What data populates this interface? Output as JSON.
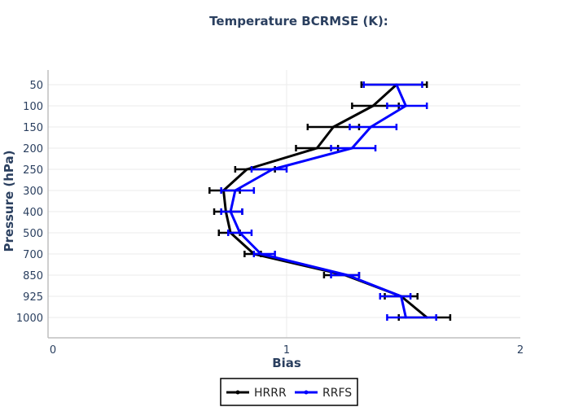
{
  "chart_data": {
    "type": "line",
    "title": "Temperature BCRMSE (K):",
    "xlabel": "Bias",
    "ylabel": "Pressure (hPa)",
    "xlim": [
      0,
      2
    ],
    "x_ticks": [
      "0",
      "1",
      "2"
    ],
    "categories": [
      "50",
      "100",
      "150",
      "200",
      "250",
      "300",
      "400",
      "500",
      "700",
      "850",
      "925",
      "1000"
    ],
    "grid": true,
    "legend_position": "bottom-center",
    "series": [
      {
        "name": "HRRR",
        "color": "#000000",
        "values": [
          1.47,
          1.37,
          1.2,
          1.13,
          0.83,
          0.73,
          0.74,
          0.76,
          0.86,
          1.25,
          1.49,
          1.6
        ],
        "err_low": [
          1.32,
          1.28,
          1.09,
          1.04,
          0.78,
          0.67,
          0.69,
          0.71,
          0.82,
          1.16,
          1.42,
          1.48
        ],
        "err_high": [
          1.6,
          1.48,
          1.31,
          1.22,
          0.95,
          0.8,
          0.81,
          0.8,
          0.89,
          1.31,
          1.56,
          1.7
        ]
      },
      {
        "name": "RRFS",
        "color": "#0000ff",
        "values": [
          1.47,
          1.51,
          1.36,
          1.28,
          0.94,
          0.78,
          0.76,
          0.8,
          0.89,
          1.26,
          1.49,
          1.51
        ],
        "err_low": [
          1.33,
          1.43,
          1.27,
          1.19,
          0.85,
          0.72,
          0.72,
          0.75,
          0.86,
          1.19,
          1.4,
          1.43
        ],
        "err_high": [
          1.58,
          1.6,
          1.47,
          1.38,
          1.0,
          0.86,
          0.81,
          0.85,
          0.95,
          1.31,
          1.53,
          1.64
        ]
      }
    ]
  }
}
